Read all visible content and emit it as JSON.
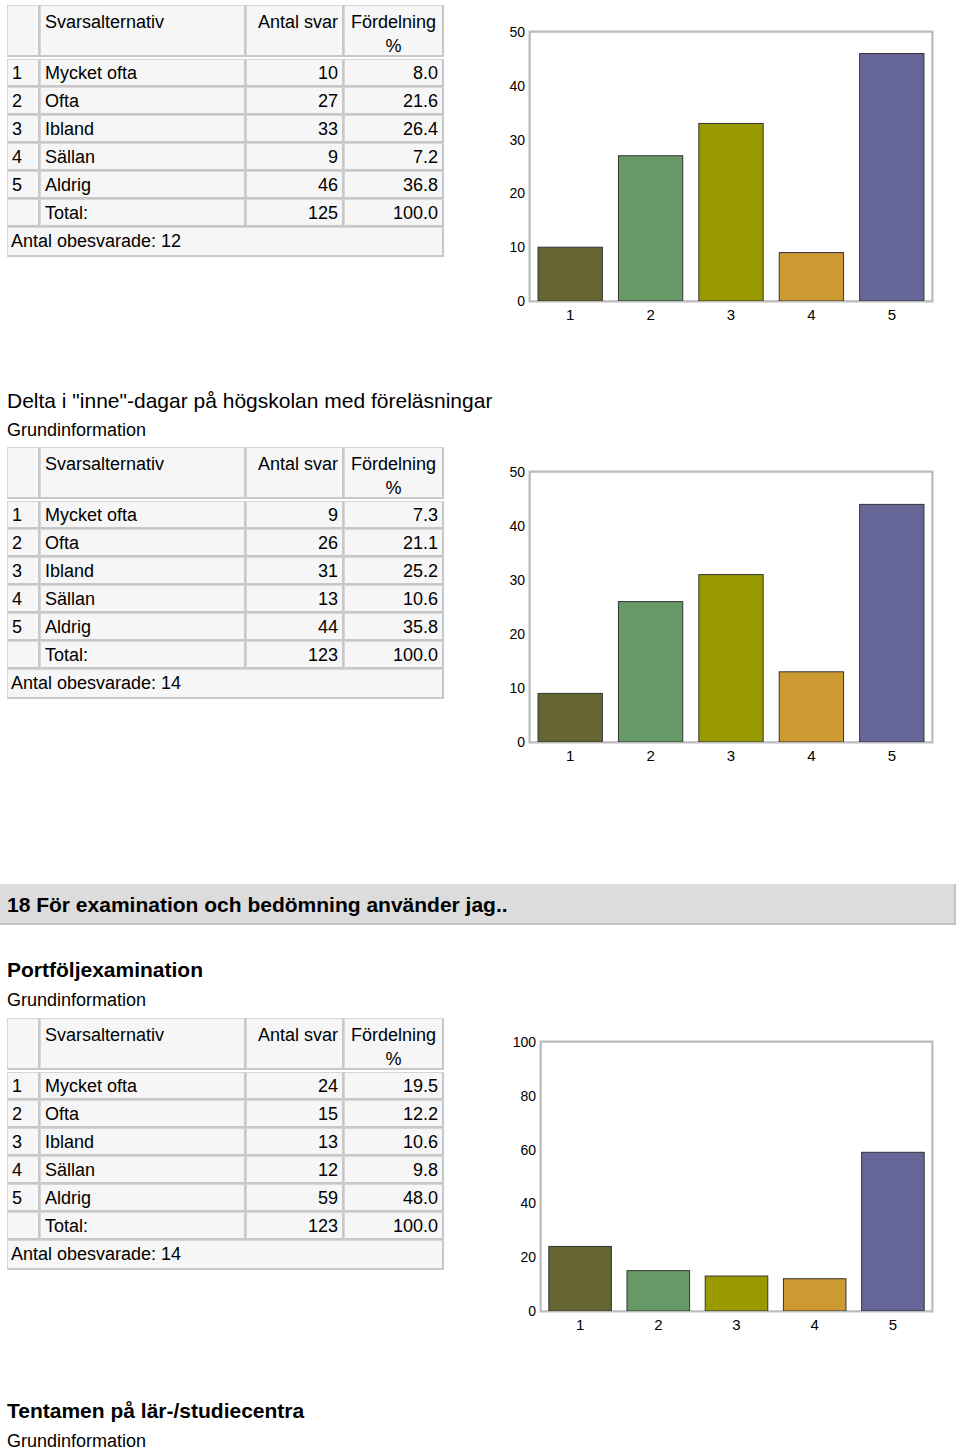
{
  "chart_data": [
    {
      "type": "bar",
      "categories": [
        "1",
        "2",
        "3",
        "4",
        "5"
      ],
      "values": [
        10,
        27,
        33,
        9,
        46
      ],
      "colors": [
        "#666633",
        "#669966",
        "#999900",
        "#cc9933",
        "#666699"
      ],
      "ylim": [
        0,
        50
      ],
      "yticks": [
        0,
        10,
        20,
        30,
        40,
        50
      ],
      "grid": false,
      "table": {
        "header": [
          "Svarsalternativ",
          "Antal svar",
          "Fördelning %"
        ],
        "rows": [
          [
            "1",
            "Mycket ofta",
            "10",
            "8.0"
          ],
          [
            "2",
            "Ofta",
            "27",
            "21.6"
          ],
          [
            "3",
            "Ibland",
            "33",
            "26.4"
          ],
          [
            "4",
            "Sällan",
            "9",
            "7.2"
          ],
          [
            "5",
            "Aldrig",
            "46",
            "36.8"
          ]
        ],
        "total": [
          "Total:",
          "125",
          "100.0"
        ],
        "unanswered": "Antal obesvarade: 12"
      }
    },
    {
      "type": "bar",
      "title": "Delta i \"inne\"-dagar på högskolan med föreläsningar",
      "subtitle": "Grundinformation",
      "categories": [
        "1",
        "2",
        "3",
        "4",
        "5"
      ],
      "values": [
        9,
        26,
        31,
        13,
        44
      ],
      "colors": [
        "#666633",
        "#669966",
        "#999900",
        "#cc9933",
        "#666699"
      ],
      "ylim": [
        0,
        50
      ],
      "yticks": [
        0,
        10,
        20,
        30,
        40,
        50
      ],
      "grid": false,
      "table": {
        "header": [
          "Svarsalternativ",
          "Antal svar",
          "Fördelning %"
        ],
        "rows": [
          [
            "1",
            "Mycket ofta",
            "9",
            "7.3"
          ],
          [
            "2",
            "Ofta",
            "26",
            "21.1"
          ],
          [
            "3",
            "Ibland",
            "31",
            "25.2"
          ],
          [
            "4",
            "Sällan",
            "13",
            "10.6"
          ],
          [
            "5",
            "Aldrig",
            "44",
            "35.8"
          ]
        ],
        "total": [
          "Total:",
          "123",
          "100.0"
        ],
        "unanswered": "Antal obesvarade: 14"
      }
    },
    {
      "type": "bar",
      "section": "18 För examination och bedömning använder jag..",
      "title": "Portföljexamination",
      "subtitle": "Grundinformation",
      "categories": [
        "1",
        "2",
        "3",
        "4",
        "5"
      ],
      "values": [
        24,
        15,
        13,
        12,
        59
      ],
      "colors": [
        "#666633",
        "#669966",
        "#999900",
        "#cc9933",
        "#666699"
      ],
      "ylim": [
        0,
        100
      ],
      "yticks": [
        0,
        20,
        40,
        60,
        80,
        100
      ],
      "grid": false,
      "table": {
        "header": [
          "Svarsalternativ",
          "Antal svar",
          "Fördelning %"
        ],
        "rows": [
          [
            "1",
            "Mycket ofta",
            "24",
            "19.5"
          ],
          [
            "2",
            "Ofta",
            "15",
            "12.2"
          ],
          [
            "3",
            "Ibland",
            "13",
            "10.6"
          ],
          [
            "4",
            "Sällan",
            "12",
            "9.8"
          ],
          [
            "5",
            "Aldrig",
            "59",
            "48.0"
          ]
        ],
        "total": [
          "Total:",
          "123",
          "100.0"
        ],
        "unanswered": "Antal obesvarade: 14"
      }
    }
  ],
  "trailing": {
    "title": "Tentamen på lär-/studiecentra",
    "subtitle": "Grundinformation"
  }
}
